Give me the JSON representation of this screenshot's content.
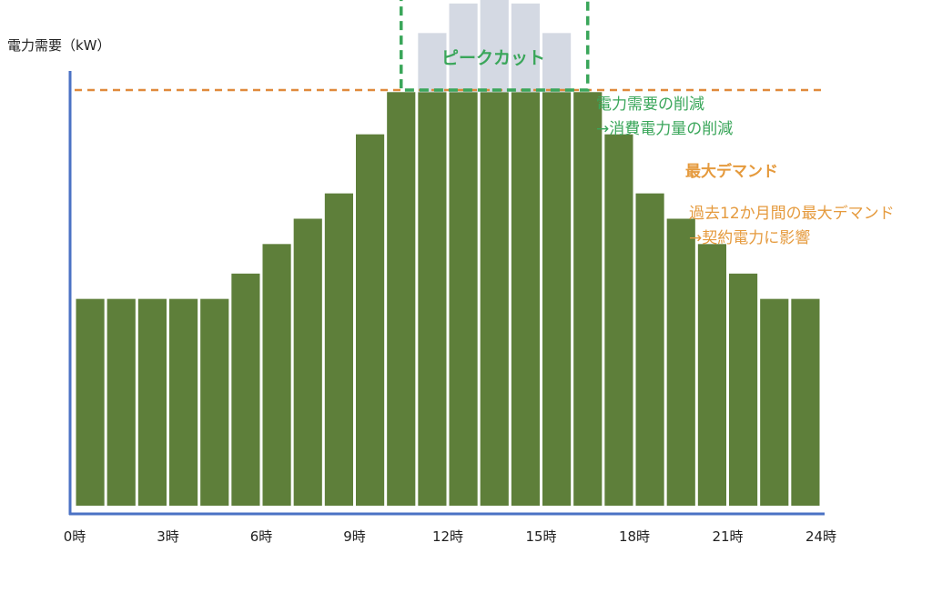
{
  "chart_data": {
    "type": "bar",
    "ylabel": "電力需要（kW）",
    "xlabel": "",
    "x_ticks": [
      "0時",
      "3時",
      "6時",
      "9時",
      "12時",
      "15時",
      "18時",
      "21時",
      "24時"
    ],
    "x_tick_hours": [
      0,
      3,
      6,
      9,
      12,
      15,
      18,
      21,
      24
    ],
    "hours": [
      0,
      1,
      2,
      3,
      4,
      5,
      6,
      7,
      8,
      9,
      10,
      11,
      12,
      13,
      14,
      15,
      16,
      17,
      18,
      19,
      20,
      21,
      22,
      23
    ],
    "ylim": [
      0,
      100
    ],
    "series": [
      {
        "values": [
          49,
          49,
          49,
          49,
          49,
          55,
          62,
          68,
          74,
          88,
          98,
          98,
          98,
          98,
          98,
          98,
          98,
          88,
          74,
          68,
          62,
          55,
          49,
          49
        ]
      },
      {
        "values": [
          0,
          0,
          0,
          0,
          0,
          0,
          0,
          0,
          0,
          0,
          0,
          14,
          21,
          32,
          21,
          14,
          0,
          0,
          0,
          0,
          0,
          0,
          0,
          0
        ]
      }
    ],
    "max_demand_value": 98.5,
    "peak_cut_hours": [
      10.5,
      16.5
    ],
    "annotations": {
      "peak_cut_title": "ピークカット",
      "peak_cut_note_1": "電力需要の削減",
      "peak_cut_note_2": "→消費電力量の削減",
      "max_demand_title": "最大デマンド",
      "max_demand_note_1": "過去12か月間の最大デマンド",
      "max_demand_note_2": "→契約電力に影響"
    },
    "colors": {
      "bar": "#5e7f3a",
      "cut": "#d4d9e3",
      "axis": "#4b72c4",
      "peak": "#3aa65a",
      "peak_text": "#3aa65a",
      "demand": "#e08a3c",
      "demand_text": "#e59a3d"
    }
  }
}
